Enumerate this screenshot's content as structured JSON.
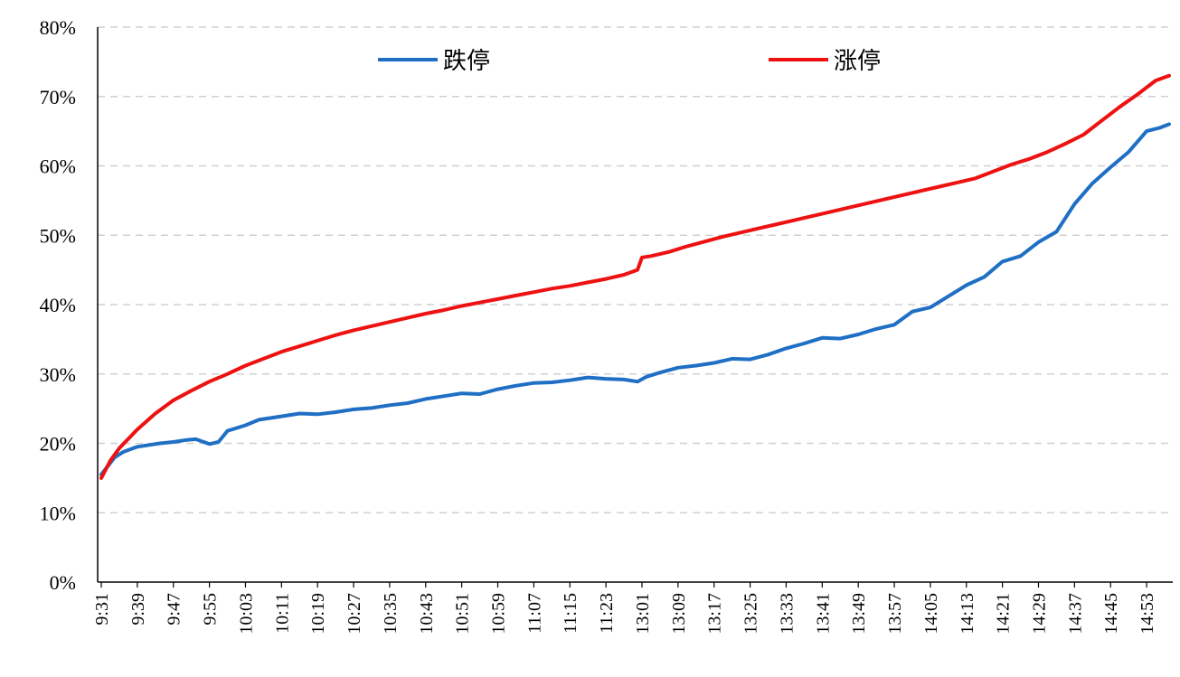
{
  "chart_data": {
    "type": "line",
    "title": "",
    "xlabel": "",
    "ylabel": "",
    "ylim": [
      0,
      80
    ],
    "y_tick_values": [
      0,
      10,
      20,
      30,
      40,
      50,
      60,
      70,
      80
    ],
    "y_tick_labels": [
      "0%",
      "10%",
      "20%",
      "30%",
      "40%",
      "50%",
      "60%",
      "70%",
      "80%"
    ],
    "x_tick_labels": [
      "9:31",
      "9:39",
      "9:47",
      "9:55",
      "10:03",
      "10:11",
      "10:19",
      "10:27",
      "10:35",
      "10:43",
      "10:51",
      "10:59",
      "11:07",
      "11:15",
      "11:23",
      "13:01",
      "13:09",
      "13:17",
      "13:25",
      "13:33",
      "13:41",
      "13:49",
      "13:57",
      "14:05",
      "14:13",
      "14:21",
      "14:29",
      "14:37",
      "14:45",
      "14:53"
    ],
    "x_tick_positions": [
      0,
      8,
      16,
      24,
      32,
      40,
      48,
      56,
      64,
      72,
      80,
      88,
      96,
      104,
      112,
      120,
      128,
      136,
      144,
      152,
      160,
      168,
      176,
      184,
      192,
      200,
      208,
      216,
      224,
      232
    ],
    "x_count": 238,
    "grid": "horizontal dashed",
    "legend_position": "top",
    "series": [
      {
        "name": "跌停",
        "color": "#1f6fc5",
        "points": [
          [
            0,
            15.5
          ],
          [
            3,
            18.0
          ],
          [
            5,
            18.8
          ],
          [
            8,
            19.5
          ],
          [
            10,
            19.7
          ],
          [
            13,
            20.0
          ],
          [
            16,
            20.2
          ],
          [
            19,
            20.5
          ],
          [
            21,
            20.6
          ],
          [
            24,
            19.9
          ],
          [
            26,
            20.2
          ],
          [
            28,
            21.8
          ],
          [
            32,
            22.6
          ],
          [
            35,
            23.4
          ],
          [
            40,
            23.9
          ],
          [
            44,
            24.3
          ],
          [
            48,
            24.2
          ],
          [
            52,
            24.5
          ],
          [
            56,
            24.9
          ],
          [
            60,
            25.1
          ],
          [
            64,
            25.5
          ],
          [
            68,
            25.8
          ],
          [
            72,
            26.4
          ],
          [
            76,
            26.8
          ],
          [
            80,
            27.2
          ],
          [
            84,
            27.1
          ],
          [
            88,
            27.8
          ],
          [
            92,
            28.3
          ],
          [
            96,
            28.7
          ],
          [
            100,
            28.8
          ],
          [
            104,
            29.1
          ],
          [
            108,
            29.5
          ],
          [
            112,
            29.3
          ],
          [
            116,
            29.2
          ],
          [
            119,
            28.9
          ],
          [
            121,
            29.6
          ],
          [
            124,
            30.2
          ],
          [
            128,
            30.9
          ],
          [
            132,
            31.2
          ],
          [
            136,
            31.6
          ],
          [
            140,
            32.2
          ],
          [
            144,
            32.1
          ],
          [
            148,
            32.8
          ],
          [
            152,
            33.7
          ],
          [
            156,
            34.4
          ],
          [
            160,
            35.2
          ],
          [
            164,
            35.1
          ],
          [
            168,
            35.7
          ],
          [
            172,
            36.5
          ],
          [
            176,
            37.1
          ],
          [
            180,
            39.0
          ],
          [
            184,
            39.6
          ],
          [
            188,
            41.2
          ],
          [
            192,
            42.8
          ],
          [
            196,
            44.0
          ],
          [
            200,
            46.2
          ],
          [
            204,
            47.0
          ],
          [
            208,
            49.0
          ],
          [
            212,
            50.5
          ],
          [
            216,
            54.5
          ],
          [
            220,
            57.5
          ],
          [
            224,
            59.8
          ],
          [
            228,
            62.0
          ],
          [
            232,
            65.0
          ],
          [
            235,
            65.5
          ],
          [
            237,
            66.0
          ]
        ]
      },
      {
        "name": "涨停",
        "color": "#ee1111",
        "points": [
          [
            0,
            15.0
          ],
          [
            2,
            17.5
          ],
          [
            4,
            19.3
          ],
          [
            8,
            22.0
          ],
          [
            12,
            24.3
          ],
          [
            16,
            26.2
          ],
          [
            20,
            27.6
          ],
          [
            24,
            28.9
          ],
          [
            28,
            30.0
          ],
          [
            32,
            31.2
          ],
          [
            36,
            32.2
          ],
          [
            40,
            33.2
          ],
          [
            44,
            34.0
          ],
          [
            48,
            34.8
          ],
          [
            52,
            35.6
          ],
          [
            56,
            36.3
          ],
          [
            60,
            36.9
          ],
          [
            64,
            37.5
          ],
          [
            68,
            38.1
          ],
          [
            72,
            38.7
          ],
          [
            76,
            39.2
          ],
          [
            80,
            39.8
          ],
          [
            84,
            40.3
          ],
          [
            88,
            40.8
          ],
          [
            92,
            41.3
          ],
          [
            96,
            41.8
          ],
          [
            100,
            42.3
          ],
          [
            104,
            42.7
          ],
          [
            108,
            43.2
          ],
          [
            112,
            43.7
          ],
          [
            116,
            44.3
          ],
          [
            119,
            45.0
          ],
          [
            120,
            46.8
          ],
          [
            122,
            47.0
          ],
          [
            126,
            47.6
          ],
          [
            130,
            48.4
          ],
          [
            134,
            49.1
          ],
          [
            138,
            49.8
          ],
          [
            142,
            50.4
          ],
          [
            146,
            51.0
          ],
          [
            150,
            51.6
          ],
          [
            154,
            52.2
          ],
          [
            158,
            52.8
          ],
          [
            162,
            53.4
          ],
          [
            166,
            54.0
          ],
          [
            170,
            54.6
          ],
          [
            174,
            55.2
          ],
          [
            178,
            55.8
          ],
          [
            182,
            56.4
          ],
          [
            186,
            57.0
          ],
          [
            190,
            57.6
          ],
          [
            194,
            58.2
          ],
          [
            198,
            59.2
          ],
          [
            202,
            60.2
          ],
          [
            206,
            61.0
          ],
          [
            210,
            62.0
          ],
          [
            214,
            63.2
          ],
          [
            218,
            64.5
          ],
          [
            222,
            66.5
          ],
          [
            226,
            68.5
          ],
          [
            230,
            70.3
          ],
          [
            234,
            72.3
          ],
          [
            237,
            73.0
          ]
        ]
      }
    ]
  }
}
